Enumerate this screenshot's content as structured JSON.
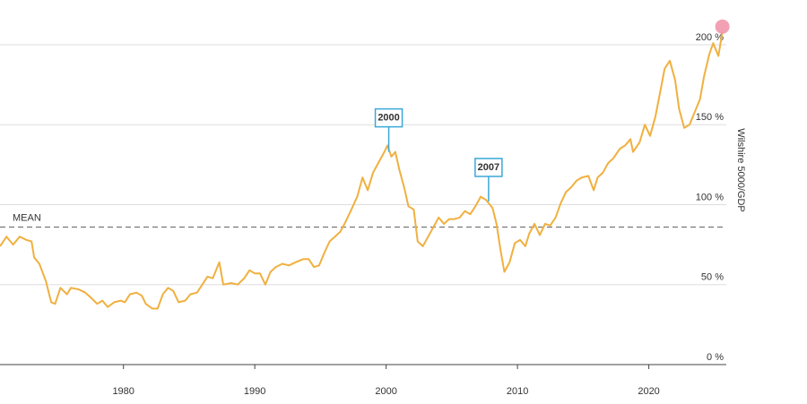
{
  "chart_data": {
    "type": "line",
    "y_axis_label": "Wilshire 5000/GDP",
    "x": [
      1970.6,
      1971.1,
      1971.6,
      1972.1,
      1972.6,
      1973.0,
      1973.2,
      1973.6,
      1974.1,
      1974.5,
      1974.8,
      1975.2,
      1975.7,
      1976.0,
      1976.6,
      1977.1,
      1977.5,
      1978.0,
      1978.4,
      1978.8,
      1979.3,
      1979.8,
      1980.1,
      1980.5,
      1981.0,
      1981.4,
      1981.7,
      1982.2,
      1982.6,
      1983.0,
      1983.4,
      1983.8,
      1984.2,
      1984.7,
      1985.1,
      1985.6,
      1986.0,
      1986.4,
      1986.8,
      1987.3,
      1987.6,
      1988.2,
      1988.7,
      1989.2,
      1989.6,
      1990.0,
      1990.4,
      1990.8,
      1991.2,
      1991.6,
      1992.1,
      1992.6,
      1993.1,
      1993.7,
      1994.1,
      1994.5,
      1994.9,
      1995.3,
      1995.7,
      1996.1,
      1996.5,
      1996.9,
      1997.3,
      1997.8,
      1998.2,
      1998.6,
      1999.0,
      1999.4,
      1999.8,
      2000.1,
      2000.4,
      2000.7,
      2001.0,
      2001.4,
      2001.7,
      2002.1,
      2002.4,
      2002.8,
      2003.2,
      2003.6,
      2004.0,
      2004.4,
      2004.8,
      2005.2,
      2005.6,
      2006.0,
      2006.4,
      2006.8,
      2007.2,
      2007.6,
      2008.1,
      2008.4,
      2008.7,
      2009.0,
      2009.4,
      2009.8,
      2010.2,
      2010.6,
      2010.9,
      2011.3,
      2011.7,
      2012.1,
      2012.5,
      2012.9,
      2013.3,
      2013.7,
      2014.1,
      2014.5,
      2014.9,
      2015.4,
      2015.8,
      2016.1,
      2016.5,
      2016.9,
      2017.3,
      2017.8,
      2018.2,
      2018.6,
      2018.8,
      2019.3,
      2019.7,
      2020.1,
      2020.5,
      2020.9,
      2021.2,
      2021.6,
      2022.0,
      2022.3,
      2022.7,
      2023.1,
      2023.6,
      2023.9,
      2024.2,
      2024.6,
      2024.9,
      2025.3,
      2025.6
    ],
    "series": [
      {
        "name": "Wilshire 5000/GDP",
        "color": "#f0b040",
        "values": [
          74,
          80,
          75,
          80,
          78,
          77,
          67,
          63,
          52,
          39,
          38,
          48,
          44,
          48,
          47,
          45,
          42,
          38,
          40,
          36,
          39,
          40,
          39,
          44,
          45,
          43,
          38,
          35,
          35,
          44,
          48,
          46,
          39,
          40,
          44,
          45,
          50,
          55,
          54,
          64,
          50,
          51,
          50,
          54,
          59,
          57,
          57,
          50,
          58,
          61,
          63,
          62,
          64,
          66,
          66,
          61,
          62,
          70,
          77,
          80,
          83,
          89,
          96,
          105,
          117,
          109,
          120,
          126,
          132,
          137,
          130,
          133,
          122,
          110,
          99,
          97,
          77,
          74,
          80,
          86,
          92,
          88,
          91,
          91,
          92,
          96,
          94,
          99,
          105,
          103,
          98,
          88,
          72,
          58,
          64,
          76,
          78,
          74,
          82,
          88,
          81,
          88,
          87,
          92,
          101,
          108,
          111,
          115,
          117,
          118,
          109,
          117,
          120,
          126,
          129,
          135,
          137,
          141,
          133,
          139,
          150,
          143,
          155,
          172,
          185,
          190,
          178,
          160,
          148,
          150,
          160,
          166,
          180,
          194,
          201,
          193,
          208
        ]
      }
    ],
    "mean_line": {
      "label": "MEAN",
      "value": 86
    },
    "annotations": [
      {
        "label": "2000",
        "x": 2000.2,
        "y": 133
      },
      {
        "label": "2007",
        "x": 2007.8,
        "y": 102
      }
    ],
    "xlim": [
      1970.6,
      2025.9
    ],
    "ylim": [
      0,
      228
    ],
    "xticks": [
      1980,
      1990,
      2000,
      2010,
      2020
    ],
    "yticks": [
      {
        "value": 0,
        "label": "0 %"
      },
      {
        "value": 50,
        "label": "50 %"
      },
      {
        "value": 100,
        "label": "100 %"
      },
      {
        "value": 150,
        "label": "150 %"
      },
      {
        "value": 200,
        "label": "200 %"
      }
    ],
    "grid": true
  }
}
